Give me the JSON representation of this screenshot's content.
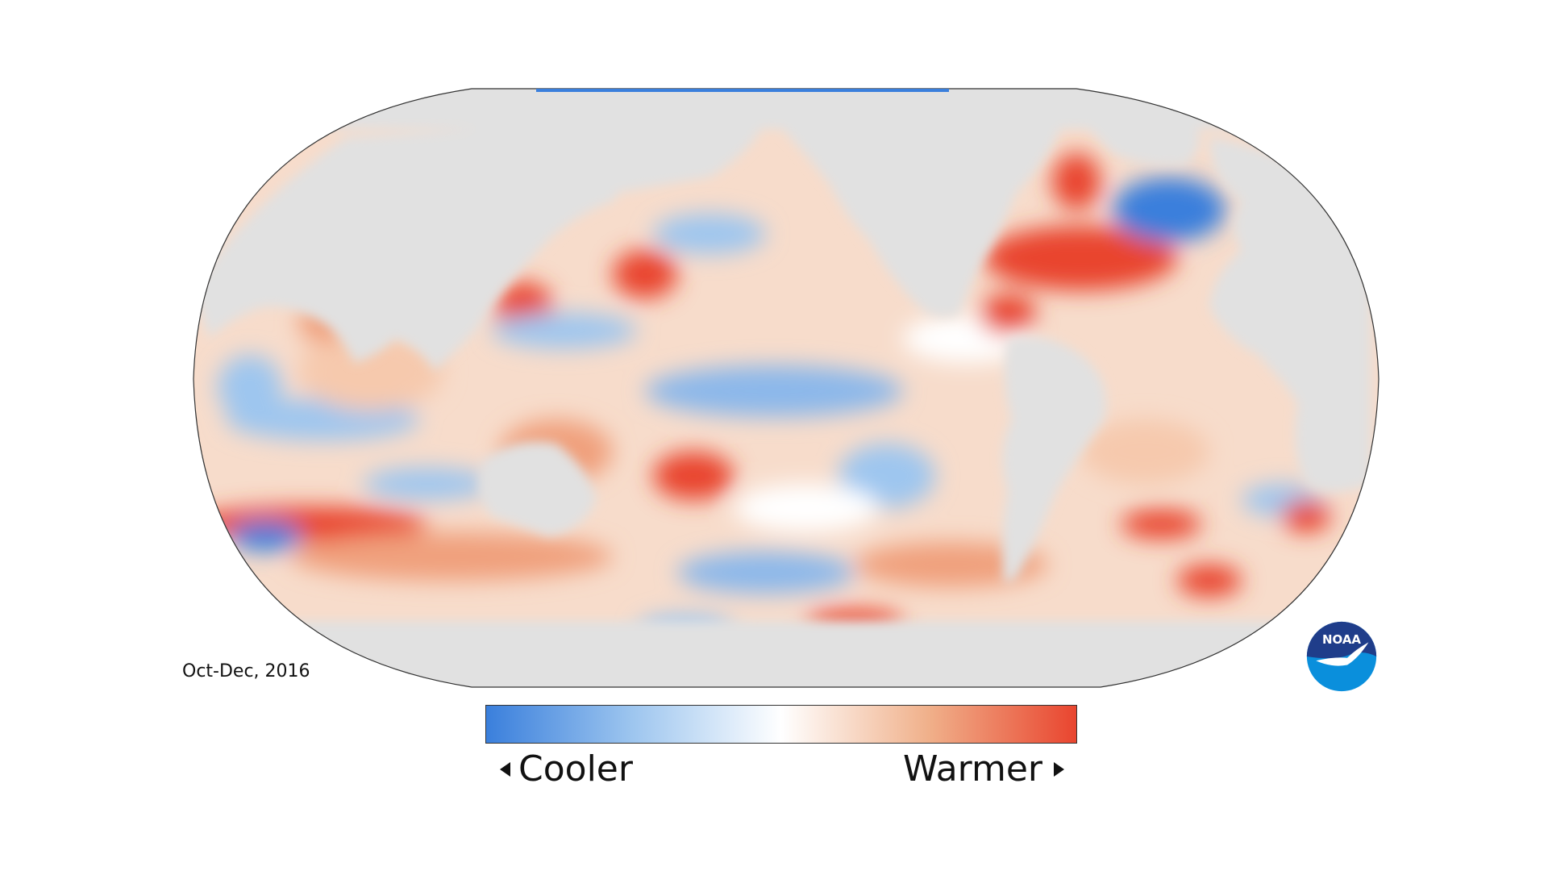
{
  "map": {
    "period": "Oct-Dec, 2016",
    "projection": "robinson",
    "colors": {
      "land": "#e1e1e1",
      "cool_strong": "#3a7fdc",
      "cool_mid": "#9ec6ef",
      "neutral": "#ffffff",
      "warm_mid": "#f0b08a",
      "warm_strong": "#e9452f",
      "outline": "#333333"
    }
  },
  "legend": {
    "low_label": "Cooler",
    "high_label": "Warmer",
    "colors": [
      "#3a7fdc",
      "#9ec6ef",
      "#ffffff",
      "#f0b08a",
      "#e9452f"
    ]
  },
  "logo": {
    "name": "noaa-logo",
    "text": "NOAA",
    "colors": {
      "navy": "#1f3d8a",
      "blue": "#0a8fdc",
      "white": "#ffffff"
    }
  }
}
